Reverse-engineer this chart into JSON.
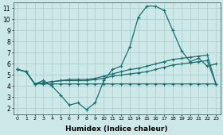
{
  "xlabel": "Humidex (Indice chaleur)",
  "bg_color": "#cce8e8",
  "grid_color": "#aacccc",
  "line_color": "#1a7070",
  "xlim": [
    -0.5,
    23.5
  ],
  "ylim": [
    1.5,
    11.5
  ],
  "xticks": [
    0,
    1,
    2,
    3,
    4,
    5,
    6,
    7,
    8,
    9,
    10,
    11,
    12,
    13,
    14,
    15,
    16,
    17,
    18,
    19,
    20,
    21,
    22,
    23
  ],
  "yticks": [
    2,
    3,
    4,
    5,
    6,
    7,
    8,
    9,
    10,
    11
  ],
  "line_volatile_x": [
    0,
    1,
    2,
    3,
    4,
    5,
    6,
    7,
    8,
    9,
    10,
    11,
    12,
    13,
    14,
    15,
    16,
    17,
    18,
    19,
    20,
    21,
    22,
    23
  ],
  "line_volatile_y": [
    5.5,
    5.3,
    4.2,
    4.5,
    4.0,
    3.2,
    2.3,
    2.5,
    1.9,
    2.5,
    4.5,
    5.5,
    5.8,
    7.5,
    10.2,
    11.2,
    11.2,
    10.8,
    9.0,
    7.2,
    6.2,
    6.5,
    5.8,
    6.0
  ],
  "line_flat_x": [
    0,
    1,
    2,
    3,
    4,
    5,
    6,
    7,
    8,
    9,
    10,
    11,
    12,
    13,
    14,
    15,
    16,
    17,
    18,
    19,
    20,
    21,
    22,
    23
  ],
  "line_flat_y": [
    5.5,
    5.3,
    4.2,
    4.2,
    4.2,
    4.2,
    4.2,
    4.2,
    4.2,
    4.2,
    4.2,
    4.2,
    4.2,
    4.2,
    4.2,
    4.2,
    4.2,
    4.2,
    4.2,
    4.2,
    4.2,
    4.2,
    4.2,
    4.2
  ],
  "line_rise1_x": [
    0,
    1,
    2,
    3,
    4,
    5,
    6,
    7,
    8,
    9,
    10,
    11,
    12,
    13,
    14,
    15,
    16,
    17,
    18,
    19,
    20,
    21,
    22,
    23
  ],
  "line_rise1_y": [
    5.5,
    5.3,
    4.2,
    4.3,
    4.4,
    4.5,
    4.5,
    4.5,
    4.5,
    4.6,
    4.7,
    4.9,
    5.0,
    5.1,
    5.2,
    5.3,
    5.5,
    5.7,
    5.9,
    6.0,
    6.1,
    6.2,
    6.3,
    4.2
  ],
  "line_rise2_x": [
    0,
    1,
    2,
    3,
    4,
    5,
    6,
    7,
    8,
    9,
    10,
    11,
    12,
    13,
    14,
    15,
    16,
    17,
    18,
    19,
    20,
    21,
    22,
    23
  ],
  "line_rise2_y": [
    5.5,
    5.3,
    4.2,
    4.3,
    4.4,
    4.5,
    4.6,
    4.6,
    4.6,
    4.7,
    4.9,
    5.1,
    5.3,
    5.5,
    5.6,
    5.8,
    6.0,
    6.2,
    6.4,
    6.5,
    6.6,
    6.7,
    6.8,
    4.2
  ]
}
